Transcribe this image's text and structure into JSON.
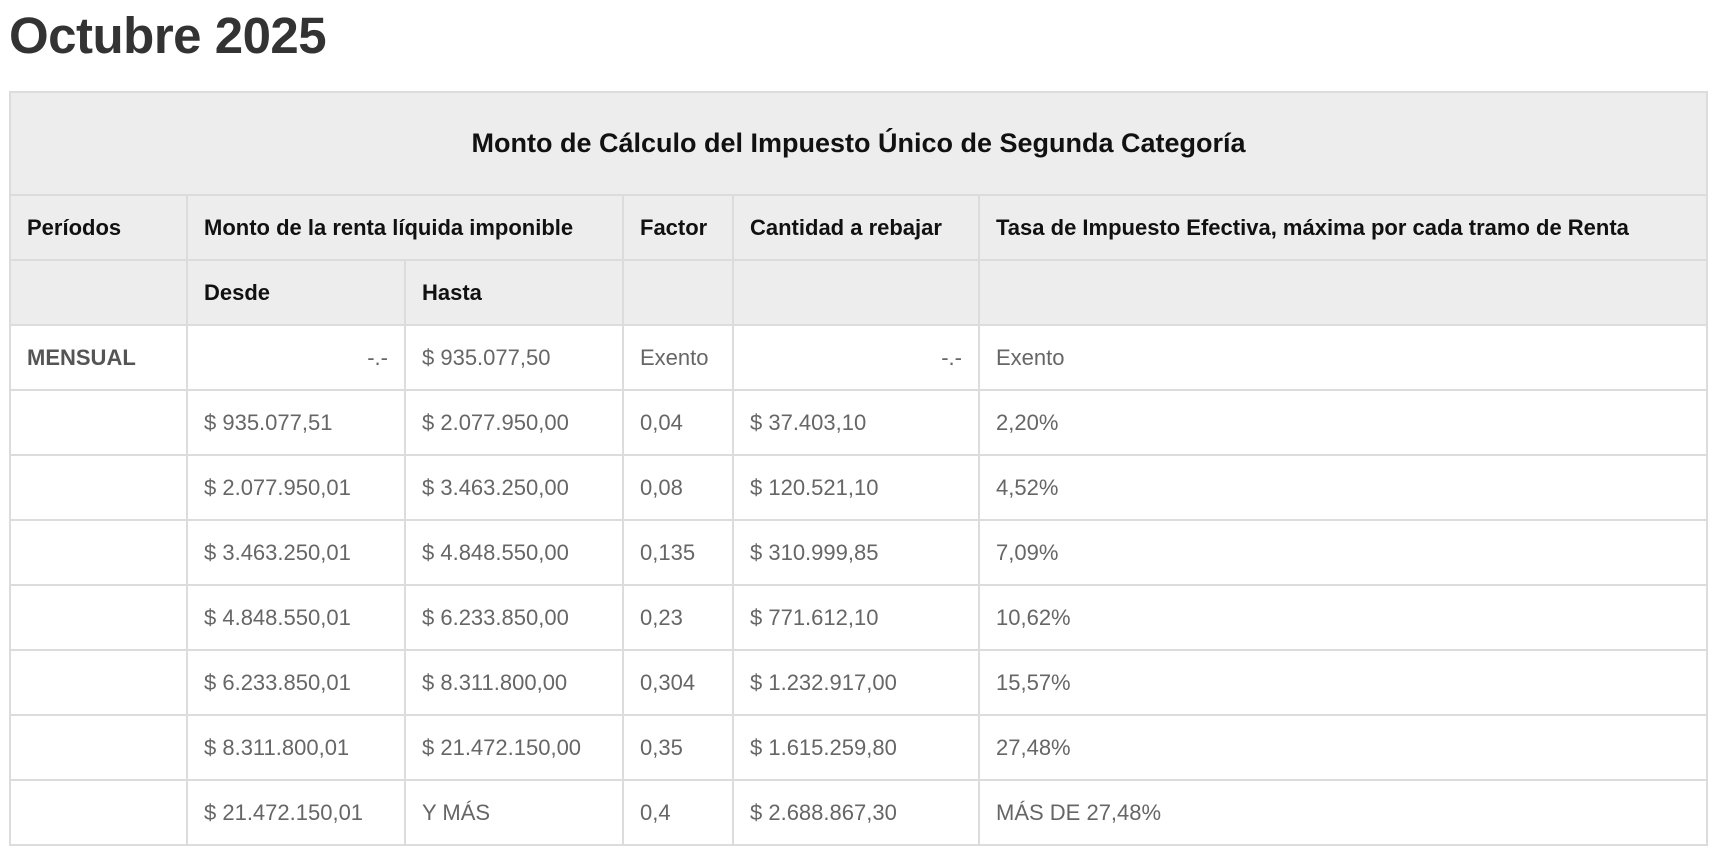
{
  "page": {
    "title": "Octubre 2025"
  },
  "table": {
    "caption": "Monto de Cálculo del Impuesto Único de Segunda Categoría",
    "headers": {
      "periodos": "Períodos",
      "monto": "Monto de la renta líquida imponible",
      "factor": "Factor",
      "cantidad": "Cantidad a rebajar",
      "tasa": "Tasa de Impuesto Efectiva, máxima por cada tramo de Renta"
    },
    "subheaders": {
      "desde": "Desde",
      "hasta": "Hasta"
    },
    "rows": [
      {
        "periodo": "MENSUAL",
        "desde": "-.-",
        "hasta": "$ 935.077,50",
        "factor": "Exento",
        "cantidad": "-.-",
        "tasa": "Exento"
      },
      {
        "periodo": "",
        "desde": "$ 935.077,51",
        "hasta": "$ 2.077.950,00",
        "factor": "0,04",
        "cantidad": "$ 37.403,10",
        "tasa": "2,20%"
      },
      {
        "periodo": "",
        "desde": "$ 2.077.950,01",
        "hasta": "$ 3.463.250,00",
        "factor": "0,08",
        "cantidad": "$ 120.521,10",
        "tasa": "4,52%"
      },
      {
        "periodo": "",
        "desde": "$ 3.463.250,01",
        "hasta": "$ 4.848.550,00",
        "factor": "0,135",
        "cantidad": "$ 310.999,85",
        "tasa": "7,09%"
      },
      {
        "periodo": "",
        "desde": "$ 4.848.550,01",
        "hasta": "$ 6.233.850,00",
        "factor": "0,23",
        "cantidad": "$ 771.612,10",
        "tasa": "10,62%"
      },
      {
        "periodo": "",
        "desde": "$ 6.233.850,01",
        "hasta": "$ 8.311.800,00",
        "factor": "0,304",
        "cantidad": "$ 1.232.917,00",
        "tasa": "15,57%"
      },
      {
        "periodo": "",
        "desde": "$ 8.311.800,01",
        "hasta": "$ 21.472.150,00",
        "factor": "0,35",
        "cantidad": "$ 1.615.259,80",
        "tasa": "27,48%"
      },
      {
        "periodo": "",
        "desde": "$ 21.472.150,01",
        "hasta": "Y MÁS",
        "factor": "0,4",
        "cantidad": "$ 2.688.867,30",
        "tasa": "MÁS DE 27,48%"
      }
    ]
  }
}
